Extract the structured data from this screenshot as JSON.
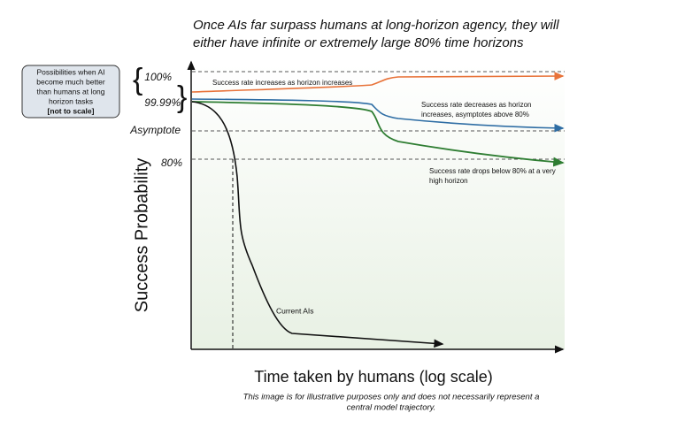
{
  "title": {
    "lines": [
      "Once AIs far surpass humans at long-horizon agency, they will",
      "either have infinite or extremely large 80% time horizons"
    ]
  },
  "callout": {
    "lines": [
      "Possibilities when AI",
      "become much better",
      "than humans at long",
      "horizon tasks"
    ],
    "note": "[not to scale]"
  },
  "y_axis": {
    "label": "Success Probability",
    "levels": [
      "100%",
      "99.99%",
      "Asymptote",
      "80%"
    ]
  },
  "x_axis": {
    "label": "Time taken by humans (log scale)"
  },
  "annotations": {
    "increase": [
      "Success rate increases as horizon increases"
    ],
    "asymptote": [
      "Success rate decreases as horizon",
      "increases, asymptotes above 80%"
    ],
    "drop": [
      "Success rate drops below 80% at a very",
      "high horizon"
    ],
    "current": [
      "Current AIs"
    ]
  },
  "footnote": {
    "lines": [
      "This image is for illustrative purposes only and does not necessarily represent a",
      "central model trajectory."
    ]
  }
}
